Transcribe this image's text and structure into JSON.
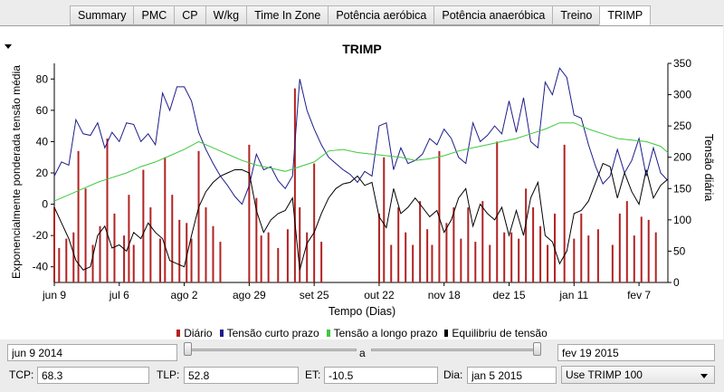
{
  "tabs": [
    {
      "label": "Summary",
      "active": false
    },
    {
      "label": "PMC",
      "active": false
    },
    {
      "label": "CP",
      "active": false
    },
    {
      "label": "W/kg",
      "active": false
    },
    {
      "label": "Time In Zone",
      "active": false
    },
    {
      "label": "Potência aeróbica",
      "active": false
    },
    {
      "label": "Potência anaeróbica",
      "active": false
    },
    {
      "label": "Treino",
      "active": false
    },
    {
      "label": "TRIMP",
      "active": true
    }
  ],
  "chart_data": {
    "type": "line",
    "title": "TRIMP",
    "xlabel": "Tempo (Dias)",
    "ylabel_left": "Exponencialmente ponderada tensão média",
    "ylabel_right": "Tensão diária",
    "x_ticks": [
      "jun 9",
      "jul 6",
      "ago 2",
      "ago 29",
      "set 25",
      "out 22",
      "nov 18",
      "dez 15",
      "jan 11",
      "fev 7"
    ],
    "x_tick_days": [
      0,
      27,
      54,
      81,
      108,
      135,
      162,
      189,
      216,
      243
    ],
    "xlim_days": [
      0,
      255
    ],
    "ylim_left": [
      -50,
      90
    ],
    "y_ticks_left": [
      -40,
      -20,
      0,
      20,
      40,
      60,
      80
    ],
    "ylim_right": [
      0,
      350
    ],
    "y_ticks_right": [
      0,
      50,
      100,
      150,
      200,
      250,
      300,
      350
    ],
    "grid": false,
    "legend_position": "bottom",
    "series": [
      {
        "name": "Diário",
        "color": "#b22222",
        "kind": "bar",
        "axis": "right",
        "x": [
          0,
          2,
          5,
          8,
          10,
          13,
          16,
          19,
          22,
          25,
          29,
          31,
          33,
          37,
          40,
          44,
          46,
          49,
          52,
          55,
          57,
          60,
          63,
          66,
          69,
          81,
          84,
          86,
          89,
          93,
          97,
          100,
          102,
          105,
          108,
          111,
          135,
          137,
          140,
          143,
          146,
          149,
          152,
          155,
          157,
          160,
          163,
          166,
          169,
          172,
          175,
          178,
          181,
          184,
          187,
          190,
          193,
          196,
          199,
          202,
          205,
          208,
          212,
          216,
          219,
          222,
          226,
          232,
          235,
          238,
          241,
          244,
          247,
          250
        ],
        "values": [
          120,
          55,
          70,
          80,
          210,
          150,
          60,
          90,
          230,
          110,
          75,
          140,
          60,
          180,
          120,
          70,
          200,
          140,
          100,
          95,
          70,
          210,
          120,
          90,
          65,
          220,
          135,
          75,
          80,
          55,
          85,
          310,
          120,
          80,
          190,
          65,
          110,
          200,
          60,
          120,
          80,
          60,
          130,
          85,
          60,
          210,
          95,
          120,
          70,
          120,
          65,
          130,
          60,
          225,
          80,
          80,
          70,
          150,
          120,
          90,
          60,
          110,
          220,
          70,
          110,
          75,
          85,
          60,
          110,
          130,
          75,
          105,
          100,
          80
        ]
      },
      {
        "name": "Tensão curto prazo",
        "color": "#1c1c8a",
        "kind": "line",
        "axis": "left",
        "x": [
          0,
          3,
          6,
          9,
          12,
          15,
          18,
          21,
          24,
          27,
          30,
          33,
          36,
          39,
          42,
          45,
          48,
          51,
          54,
          57,
          60,
          63,
          66,
          69,
          72,
          75,
          78,
          81,
          84,
          87,
          90,
          93,
          96,
          99,
          102,
          105,
          108,
          111,
          114,
          117,
          120,
          123,
          126,
          129,
          132,
          135,
          138,
          141,
          144,
          147,
          150,
          153,
          156,
          159,
          162,
          165,
          168,
          171,
          174,
          177,
          180,
          183,
          186,
          189,
          192,
          195,
          198,
          201,
          204,
          207,
          210,
          213,
          216,
          219,
          222,
          225,
          228,
          231,
          234,
          237,
          240,
          243,
          246,
          249,
          252,
          255
        ],
        "y": [
          18,
          27,
          25,
          54,
          45,
          44,
          52,
          36,
          46,
          40,
          52,
          51,
          40,
          45,
          38,
          71,
          60,
          75,
          75,
          66,
          46,
          35,
          26,
          18,
          12,
          5,
          0,
          12,
          32,
          22,
          24,
          15,
          10,
          18,
          80,
          60,
          48,
          38,
          30,
          26,
          22,
          19,
          14,
          21,
          18,
          50,
          52,
          22,
          36,
          26,
          28,
          32,
          42,
          38,
          48,
          42,
          30,
          26,
          52,
          40,
          44,
          50,
          45,
          66,
          46,
          68,
          40,
          36,
          78,
          70,
          87,
          81,
          57,
          55,
          38,
          24,
          13,
          18,
          35,
          20,
          28,
          42,
          18,
          36,
          20,
          15
        ]
      },
      {
        "name": "Tensão a longo prazo",
        "color": "#3ec83e",
        "kind": "line",
        "axis": "left",
        "x": [
          0,
          6,
          12,
          18,
          24,
          30,
          36,
          42,
          48,
          54,
          60,
          66,
          72,
          78,
          84,
          90,
          96,
          102,
          108,
          114,
          120,
          126,
          132,
          138,
          144,
          150,
          156,
          162,
          168,
          174,
          180,
          186,
          192,
          198,
          204,
          210,
          216,
          222,
          228,
          234,
          240,
          246,
          252,
          255
        ],
        "y": [
          2,
          6,
          10,
          14,
          17,
          20,
          24,
          27,
          31,
          35,
          40,
          36,
          32,
          28,
          25,
          23,
          21,
          24,
          27,
          34,
          35,
          33,
          32,
          31,
          30,
          28,
          29,
          31,
          34,
          36,
          38,
          40,
          42,
          45,
          48,
          52,
          52,
          48,
          45,
          42,
          41,
          40,
          37,
          33
        ]
      },
      {
        "name": "Equilibriu de tensão",
        "color": "#000000",
        "kind": "line",
        "axis": "left",
        "x": [
          0,
          3,
          6,
          9,
          12,
          15,
          18,
          21,
          24,
          27,
          30,
          33,
          36,
          39,
          42,
          45,
          48,
          51,
          54,
          57,
          60,
          63,
          66,
          69,
          72,
          75,
          78,
          81,
          84,
          87,
          90,
          93,
          96,
          99,
          102,
          105,
          108,
          111,
          114,
          117,
          120,
          123,
          126,
          129,
          132,
          135,
          138,
          141,
          144,
          147,
          150,
          153,
          156,
          159,
          162,
          165,
          168,
          171,
          174,
          177,
          180,
          183,
          186,
          189,
          192,
          195,
          198,
          201,
          204,
          207,
          210,
          213,
          216,
          219,
          222,
          225,
          228,
          231,
          234,
          237,
          240,
          243,
          246,
          249,
          252,
          255
        ],
        "y": [
          -2,
          -12,
          -22,
          -36,
          -42,
          -40,
          -20,
          -14,
          -28,
          -26,
          -30,
          -18,
          -22,
          -12,
          -18,
          -22,
          -36,
          -38,
          -40,
          -20,
          -2,
          8,
          14,
          18,
          20,
          22,
          22,
          20,
          -4,
          -18,
          -10,
          -6,
          -4,
          4,
          -42,
          -25,
          -18,
          -6,
          4,
          10,
          13,
          14,
          18,
          12,
          14,
          -8,
          -15,
          10,
          -6,
          -2,
          4,
          -2,
          -8,
          -4,
          -18,
          -10,
          4,
          10,
          -14,
          0,
          -6,
          -10,
          -2,
          -20,
          -4,
          -20,
          4,
          14,
          -20,
          -24,
          -38,
          -30,
          -6,
          -4,
          2,
          14,
          26,
          24,
          4,
          20,
          8,
          0,
          22,
          4,
          12,
          16
        ]
      }
    ]
  },
  "legend": [
    {
      "label": "Diário",
      "color": "#b22222"
    },
    {
      "label": "Tensão curto prazo",
      "color": "#1c1c8a"
    },
    {
      "label": "Tensão a longo prazo",
      "color": "#3ec83e"
    },
    {
      "label": "Equilibriu de tensão",
      "color": "#000000"
    }
  ],
  "controls": {
    "start_date": "jun 9 2014",
    "range_sep": "a",
    "end_date": "fev 19 2015",
    "range_start_fraction": 0.0,
    "range_end_fraction": 1.0,
    "tcp_label": "TCP:",
    "tcp_value": "68.3",
    "tlp_label": "TLP:",
    "tlp_value": "52.8",
    "et_label": "ET:",
    "et_value": "-10.5",
    "dia_label": "Dia:",
    "dia_value": "jan 5 2015",
    "mode_value": "Use TRIMP 100"
  }
}
